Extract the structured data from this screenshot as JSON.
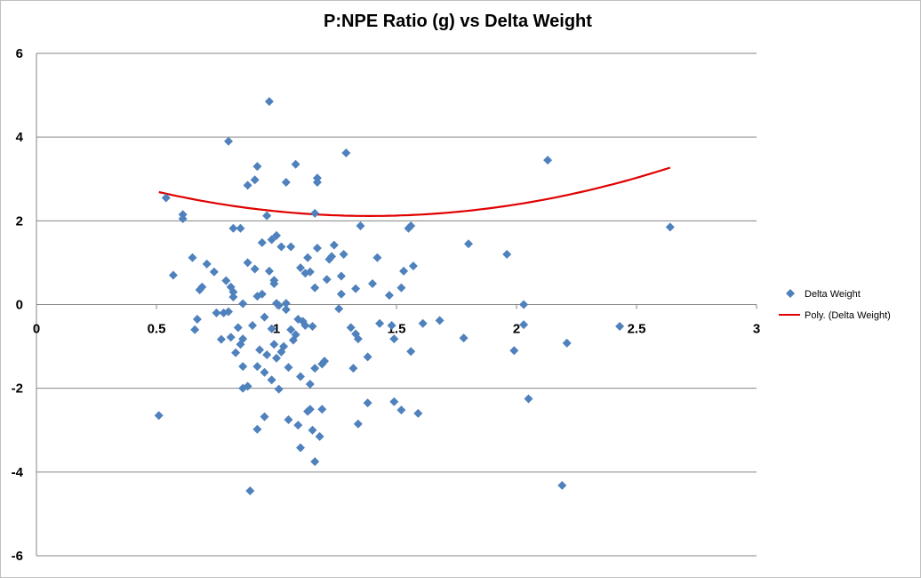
{
  "chart_data": {
    "type": "scatter",
    "title": "P:NPE Ratio (g) vs Delta Weight",
    "xlabel": "",
    "ylabel": "",
    "xlim": [
      0,
      3
    ],
    "ylim": [
      -6,
      6
    ],
    "x_ticks": [
      "0",
      "0.5",
      "1",
      "1.5",
      "2",
      "2.5",
      "3"
    ],
    "y_ticks": [
      "6",
      "4",
      "2",
      "0",
      "-2",
      "-4",
      "-6"
    ],
    "grid": "horizontal major gridlines",
    "legend_position": "right",
    "series": [
      {
        "name": "Delta Weight",
        "marker": "diamond",
        "color": "#4f81bd",
        "points": [
          [
            0.51,
            -2.65
          ],
          [
            0.54,
            2.55
          ],
          [
            0.57,
            0.7
          ],
          [
            0.61,
            2.15
          ],
          [
            0.61,
            2.05
          ],
          [
            0.65,
            1.12
          ],
          [
            0.66,
            -0.6
          ],
          [
            0.67,
            -0.35
          ],
          [
            0.68,
            0.35
          ],
          [
            0.69,
            0.42
          ],
          [
            0.71,
            0.97
          ],
          [
            0.74,
            0.78
          ],
          [
            0.75,
            -0.2
          ],
          [
            0.77,
            -0.83
          ],
          [
            0.78,
            -0.2
          ],
          [
            0.79,
            0.57
          ],
          [
            0.8,
            -0.17
          ],
          [
            0.8,
            3.9
          ],
          [
            0.81,
            0.42
          ],
          [
            0.81,
            -0.78
          ],
          [
            0.82,
            0.3
          ],
          [
            0.82,
            0.18
          ],
          [
            0.82,
            1.82
          ],
          [
            0.83,
            -1.15
          ],
          [
            0.84,
            -0.55
          ],
          [
            0.85,
            1.82
          ],
          [
            0.85,
            -0.95
          ],
          [
            0.86,
            -0.82
          ],
          [
            0.86,
            0.02
          ],
          [
            0.86,
            -1.48
          ],
          [
            0.86,
            -2.0
          ],
          [
            0.88,
            -1.95
          ],
          [
            0.88,
            2.85
          ],
          [
            0.88,
            1.0
          ],
          [
            0.89,
            -4.45
          ],
          [
            0.9,
            -0.5
          ],
          [
            0.91,
            2.98
          ],
          [
            0.91,
            0.85
          ],
          [
            0.92,
            3.3
          ],
          [
            0.92,
            0.2
          ],
          [
            0.92,
            -1.48
          ],
          [
            0.92,
            -2.98
          ],
          [
            0.93,
            -1.08
          ],
          [
            0.94,
            0.25
          ],
          [
            0.94,
            1.48
          ],
          [
            0.95,
            -0.3
          ],
          [
            0.95,
            -2.68
          ],
          [
            0.95,
            -1.62
          ],
          [
            0.96,
            2.12
          ],
          [
            0.96,
            -1.2
          ],
          [
            0.97,
            0.8
          ],
          [
            0.97,
            4.85
          ],
          [
            0.98,
            -0.58
          ],
          [
            0.98,
            -1.8
          ],
          [
            0.98,
            1.55
          ],
          [
            0.99,
            0.5
          ],
          [
            0.99,
            0.58
          ],
          [
            0.99,
            -0.95
          ],
          [
            1.0,
            0.03
          ],
          [
            1.0,
            1.65
          ],
          [
            1.0,
            -1.28
          ],
          [
            1.01,
            -0.02
          ],
          [
            1.01,
            -2.02
          ],
          [
            1.02,
            -1.13
          ],
          [
            1.02,
            1.38
          ],
          [
            1.03,
            -1.0
          ],
          [
            1.04,
            2.92
          ],
          [
            1.04,
            0.03
          ],
          [
            1.04,
            -0.12
          ],
          [
            1.05,
            -1.5
          ],
          [
            1.05,
            -2.75
          ],
          [
            1.06,
            1.38
          ],
          [
            1.06,
            -0.6
          ],
          [
            1.07,
            -0.85
          ],
          [
            1.08,
            3.35
          ],
          [
            1.08,
            -0.72
          ],
          [
            1.09,
            -0.35
          ],
          [
            1.09,
            -2.88
          ],
          [
            1.1,
            -1.72
          ],
          [
            1.1,
            -3.42
          ],
          [
            1.1,
            0.88
          ],
          [
            1.11,
            -0.4
          ],
          [
            1.12,
            0.75
          ],
          [
            1.12,
            -0.5
          ],
          [
            1.13,
            1.12
          ],
          [
            1.13,
            -2.55
          ],
          [
            1.14,
            -2.5
          ],
          [
            1.14,
            0.78
          ],
          [
            1.14,
            -1.9
          ],
          [
            1.15,
            -3.0
          ],
          [
            1.15,
            -0.52
          ],
          [
            1.16,
            2.18
          ],
          [
            1.16,
            -1.52
          ],
          [
            1.16,
            0.4
          ],
          [
            1.16,
            -3.75
          ],
          [
            1.17,
            3.02
          ],
          [
            1.17,
            2.92
          ],
          [
            1.17,
            1.35
          ],
          [
            1.18,
            -3.15
          ],
          [
            1.19,
            -2.5
          ],
          [
            1.19,
            -1.42
          ],
          [
            1.2,
            -1.35
          ],
          [
            1.21,
            0.6
          ],
          [
            1.22,
            1.08
          ],
          [
            1.23,
            1.15
          ],
          [
            1.24,
            1.42
          ],
          [
            1.26,
            -0.1
          ],
          [
            1.27,
            0.25
          ],
          [
            1.27,
            0.68
          ],
          [
            1.28,
            1.2
          ],
          [
            1.29,
            3.62
          ],
          [
            1.31,
            -0.55
          ],
          [
            1.32,
            -1.52
          ],
          [
            1.33,
            0.38
          ],
          [
            1.33,
            -0.7
          ],
          [
            1.34,
            -0.82
          ],
          [
            1.34,
            -2.85
          ],
          [
            1.35,
            1.88
          ],
          [
            1.38,
            -2.35
          ],
          [
            1.38,
            -1.25
          ],
          [
            1.4,
            0.5
          ],
          [
            1.42,
            1.12
          ],
          [
            1.43,
            -0.45
          ],
          [
            1.47,
            0.22
          ],
          [
            1.48,
            -0.5
          ],
          [
            1.49,
            -0.82
          ],
          [
            1.49,
            -2.32
          ],
          [
            1.52,
            -2.52
          ],
          [
            1.52,
            0.4
          ],
          [
            1.53,
            0.8
          ],
          [
            1.55,
            1.82
          ],
          [
            1.56,
            1.88
          ],
          [
            1.56,
            -1.12
          ],
          [
            1.57,
            0.92
          ],
          [
            1.59,
            -2.6
          ],
          [
            1.61,
            -0.45
          ],
          [
            1.68,
            -0.38
          ],
          [
            1.78,
            -0.8
          ],
          [
            1.8,
            1.45
          ],
          [
            1.96,
            1.2
          ],
          [
            1.99,
            -1.1
          ],
          [
            2.03,
            0.0
          ],
          [
            2.03,
            -0.48
          ],
          [
            2.05,
            -2.25
          ],
          [
            2.13,
            3.45
          ],
          [
            2.19,
            -4.32
          ],
          [
            2.21,
            -0.92
          ],
          [
            2.43,
            -0.52
          ],
          [
            2.64,
            1.85
          ]
        ]
      },
      {
        "name": "Poly. (Delta Weight)",
        "type": "line",
        "color": "#e00000",
        "fit": "polynomial order 2",
        "x_range": [
          0.51,
          2.64
        ],
        "coefficients": [
          0.738,
          -2.05,
          3.54
        ]
      }
    ]
  }
}
